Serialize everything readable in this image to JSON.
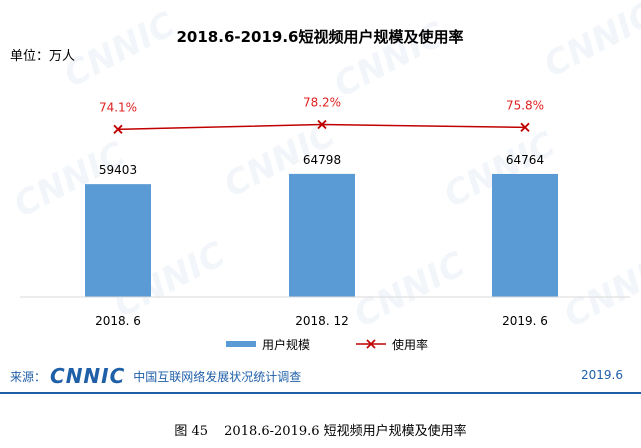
{
  "chart_data": {
    "type": "bar",
    "title": "2018.6-2019.6短视频用户规模及使用率",
    "unit_label": "单位：万人",
    "categories": [
      "2018. 6",
      "2018. 12",
      "2019. 6"
    ],
    "series": [
      {
        "name": "用户规模",
        "type": "bar",
        "values": [
          59403,
          64798,
          64764
        ],
        "color": "#5b9bd5"
      },
      {
        "name": "使用率",
        "type": "line",
        "values": [
          74.1,
          78.2,
          75.8
        ],
        "labels": [
          "74.1%",
          "78.2%",
          "75.8%"
        ],
        "color": "#c00000",
        "marker": "x"
      }
    ],
    "legend_position": "bottom",
    "grid": false
  },
  "footer": {
    "source_label": "来源：",
    "logo_text": "CNNIC",
    "org_name": "中国互联网络发展状况统计调查",
    "date": "2019.6"
  },
  "caption": {
    "figure_no": "图  45",
    "text": "2018.6-2019.6 短视频用户规模及使用率"
  },
  "watermark": "CNNIC",
  "colors": {
    "accent": "#1f5fa8",
    "bar": "#5b9bd5",
    "line": "#c00000",
    "pct_label": "#e02020"
  }
}
